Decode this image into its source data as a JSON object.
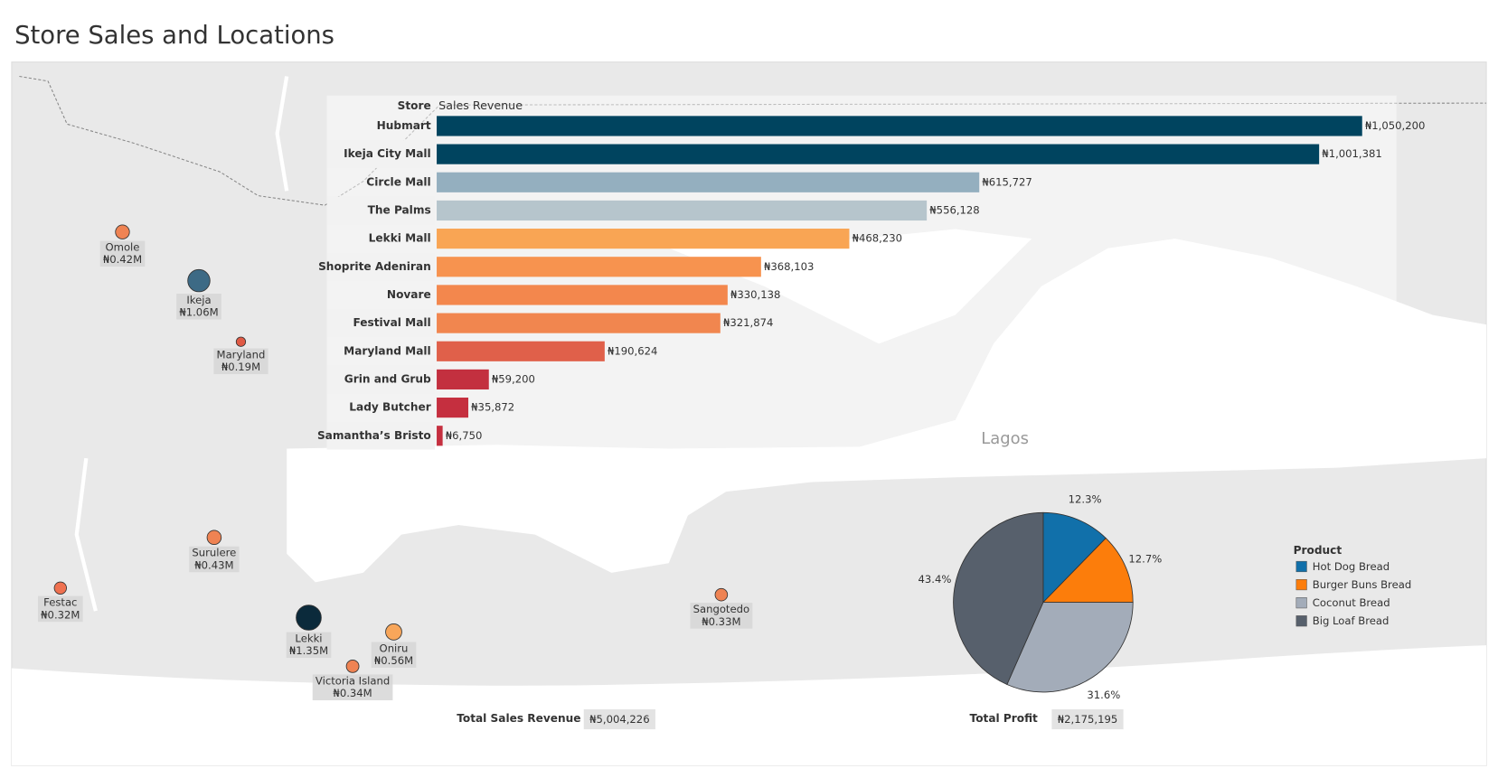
{
  "title": "Store Sales and Locations",
  "chart_data": [
    {
      "type": "bar",
      "orientation": "horizontal",
      "category_header": "Store",
      "value_header": "Sales Revenue",
      "categories": [
        "Hubmart",
        "Ikeja City Mall",
        "Circle Mall",
        "The Palms",
        "Lekki Mall",
        "Shoprite Adeniran",
        "Novare",
        "Festival Mall",
        "Maryland Mall",
        "Grin and Grub",
        "Lady Butcher",
        "Samantha’s Bristo"
      ],
      "values": [
        1050200,
        1001381,
        615727,
        556128,
        468230,
        368103,
        330138,
        321874,
        190624,
        59200,
        35872,
        6750
      ],
      "value_labels": [
        "₦1,050,200",
        "₦1,001,381",
        "₦615,727",
        "₦556,128",
        "₦468,230",
        "₦368,103",
        "₦330,138",
        "₦321,874",
        "₦190,624",
        "₦59,200",
        "₦35,872",
        "₦6,750"
      ],
      "colors": [
        "#00445f",
        "#00445f",
        "#94afbf",
        "#b6c5cc",
        "#f9a554",
        "#f7934f",
        "#f3874d",
        "#f1864f",
        "#e0604a",
        "#c3303f",
        "#c52f3f",
        "#c52f3f"
      ]
    },
    {
      "type": "map-bubble",
      "place_label": "Lagos",
      "categories": [
        "Omole",
        "Ikeja",
        "Maryland",
        "Surulere",
        "Festac",
        "Lekki",
        "Oniru",
        "Victoria Island",
        "Sangotedo"
      ],
      "values": [
        420000,
        1060000,
        190000,
        430000,
        320000,
        1350000,
        560000,
        340000,
        330000
      ],
      "value_labels": [
        "₦0.42M",
        "₦1.06M",
        "₦0.19M",
        "₦0.43M",
        "₦0.32M",
        "₦1.35M",
        "₦0.56M",
        "₦0.34M",
        "₦0.33M"
      ],
      "colors": [
        "#ef8353",
        "#3d6a85",
        "#e05a45",
        "#ef8353",
        "#ef7150",
        "#0b2a3b",
        "#f8a65a",
        "#ef8353",
        "#ef8353"
      ]
    },
    {
      "type": "pie",
      "legend_title": "Product",
      "categories": [
        "Hot Dog Bread",
        "Burger Buns Bread",
        "Coconut Bread",
        "Big Loaf Bread"
      ],
      "values": [
        12.3,
        12.7,
        31.6,
        43.4
      ],
      "value_labels": [
        "12.3%",
        "12.7%",
        "31.6%",
        "43.4%"
      ],
      "colors": [
        "#1170aa",
        "#fc7d0b",
        "#a3acb9",
        "#57606c"
      ]
    }
  ],
  "kpis": [
    {
      "label": "Total Sales Revenue",
      "value": "₦5,004,226"
    },
    {
      "label": "Total Profit",
      "value": "₦2,175,195"
    }
  ]
}
